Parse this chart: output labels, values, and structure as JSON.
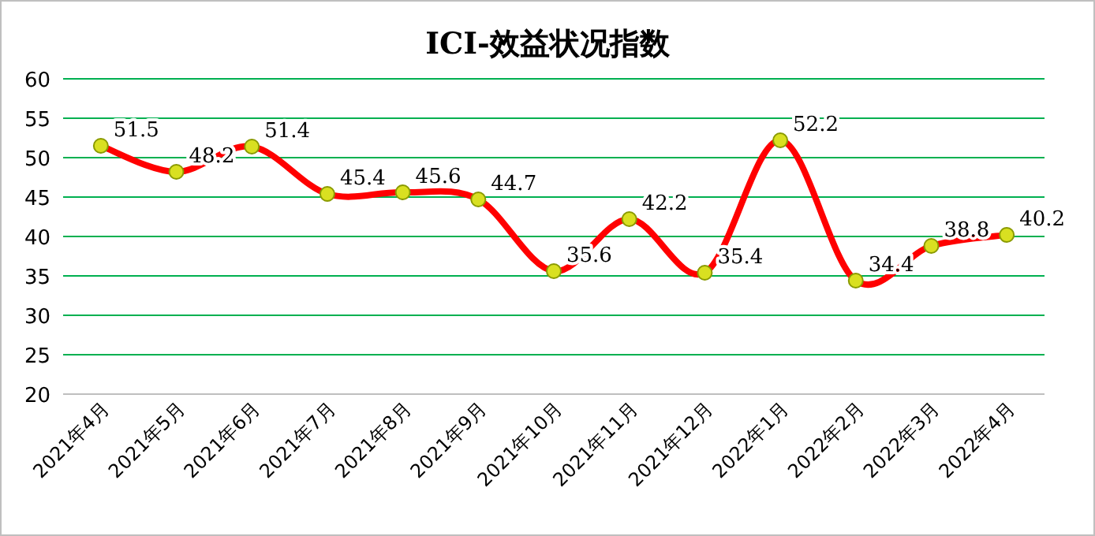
{
  "chart_data": {
    "type": "line",
    "title": "ICI-效益状况指数",
    "categories": [
      "2021年4月",
      "2021年5月",
      "2021年6月",
      "2021年7月",
      "2021年8月",
      "2021年9月",
      "2021年10月",
      "2021年11月",
      "2021年12月",
      "2022年1月",
      "2022年2月",
      "2022年3月",
      "2022年4月"
    ],
    "series": [
      {
        "color": "#ff0000",
        "values": [
          51.5,
          48.2,
          51.4,
          45.4,
          45.6,
          44.7,
          35.6,
          42.2,
          35.4,
          52.2,
          34.4,
          38.8,
          40.2
        ]
      }
    ],
    "ylim": [
      20,
      60
    ],
    "yticks": [
      20,
      25,
      30,
      35,
      40,
      45,
      50,
      55,
      60
    ],
    "grid": "y",
    "marker": "circle",
    "data_labels": true,
    "line_style": "solid"
  }
}
